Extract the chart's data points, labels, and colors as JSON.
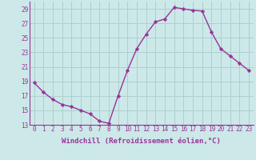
{
  "x": [
    0,
    1,
    2,
    3,
    4,
    5,
    6,
    7,
    8,
    9,
    10,
    11,
    12,
    13,
    14,
    15,
    16,
    17,
    18,
    19,
    20,
    21,
    22,
    23
  ],
  "y": [
    18.8,
    17.5,
    16.5,
    15.8,
    15.5,
    15.0,
    14.5,
    13.5,
    13.2,
    17.0,
    20.5,
    23.5,
    25.5,
    27.2,
    27.6,
    29.2,
    29.0,
    28.8,
    28.7,
    25.8,
    23.5,
    22.5,
    21.5,
    20.5
  ],
  "line_color": "#993399",
  "marker": "D",
  "marker_size": 2.2,
  "bg_color": "#cce8e8",
  "grid_color": "#aacccc",
  "xlabel": "Windchill (Refroidissement éolien,°C)",
  "ylim": [
    13,
    30
  ],
  "xlim": [
    -0.5,
    23.5
  ],
  "yticks": [
    13,
    15,
    17,
    19,
    21,
    23,
    25,
    27,
    29
  ],
  "xticks": [
    0,
    1,
    2,
    3,
    4,
    5,
    6,
    7,
    8,
    9,
    10,
    11,
    12,
    13,
    14,
    15,
    16,
    17,
    18,
    19,
    20,
    21,
    22,
    23
  ],
  "tick_label_size": 5.5,
  "xlabel_size": 6.5,
  "line_width": 1.0
}
